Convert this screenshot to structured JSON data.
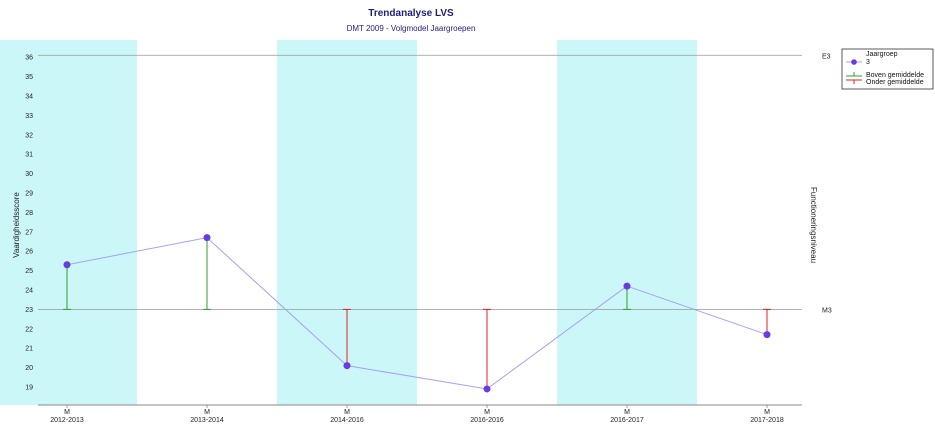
{
  "chart_data": {
    "type": "line",
    "title": "Trendanalyse LVS",
    "subtitle": "DMT 2009 - Volgmodel Jaargroepen",
    "ylabel": "Vaardigheidsscore",
    "right_label": "Functioneringsniveau",
    "ylim": [
      18,
      37
    ],
    "yticks": [
      19,
      20,
      21,
      22,
      23,
      24,
      25,
      26,
      27,
      28,
      29,
      30,
      31,
      32,
      33,
      34,
      35,
      36
    ],
    "categories": [
      {
        "period": "M",
        "year": "2012-2013"
      },
      {
        "period": "M",
        "year": "2013-2014"
      },
      {
        "period": "M",
        "year": "2014-2016"
      },
      {
        "period": "M",
        "year": "2016-2016"
      },
      {
        "period": "M",
        "year": "2016-2017"
      },
      {
        "period": "M",
        "year": "2017-2018"
      }
    ],
    "series": [
      {
        "name": "3",
        "values": [
          25.3,
          26.7,
          20.1,
          18.9,
          24.2,
          21.7
        ]
      }
    ],
    "reference_lines": [
      {
        "label": "E3",
        "value": 36.1
      },
      {
        "label": "M3",
        "value": 23
      }
    ],
    "baseline": 23,
    "shaded_categories": [
      0,
      2,
      4
    ],
    "legend": {
      "title": "Jaargroep",
      "above": "Boven gemiddelde",
      "below": "Onder gemiddelde",
      "position": "top-right"
    },
    "colors": {
      "line": "#a8a0f0",
      "marker": "#6a3be0",
      "above": "#2ca02c",
      "below": "#e02020",
      "shade": "#ccf7f9",
      "refline": "#999999",
      "title": "#1f1f7a"
    }
  }
}
